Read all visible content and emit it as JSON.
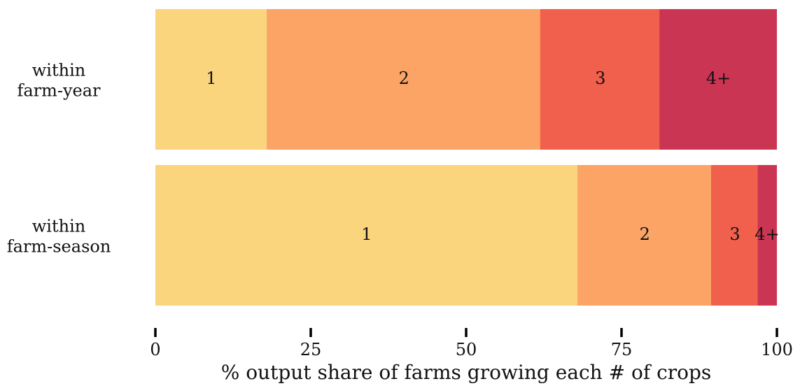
{
  "chart_data": {
    "type": "bar",
    "orientation": "horizontal",
    "stacked": true,
    "categories": [
      {
        "line1": "within",
        "line2": "farm-year"
      },
      {
        "line1": "within",
        "line2": "farm-season"
      }
    ],
    "series": [
      {
        "name": "1",
        "values": [
          18,
          68
        ],
        "color": "#fbd57e"
      },
      {
        "name": "2",
        "values": [
          44,
          21.5
        ],
        "color": "#fba466"
      },
      {
        "name": "3",
        "values": [
          19.2,
          7.5
        ],
        "color": "#f0604d"
      },
      {
        "name": "4+",
        "values": [
          18.8,
          3
        ],
        "color": "#cb3554"
      }
    ],
    "xlabel": "% output share of farms growing each # of crops",
    "xlim": [
      0,
      100
    ],
    "xticks": [
      "0",
      "25",
      "50",
      "75",
      "100"
    ],
    "grid": false,
    "legend": "none"
  }
}
